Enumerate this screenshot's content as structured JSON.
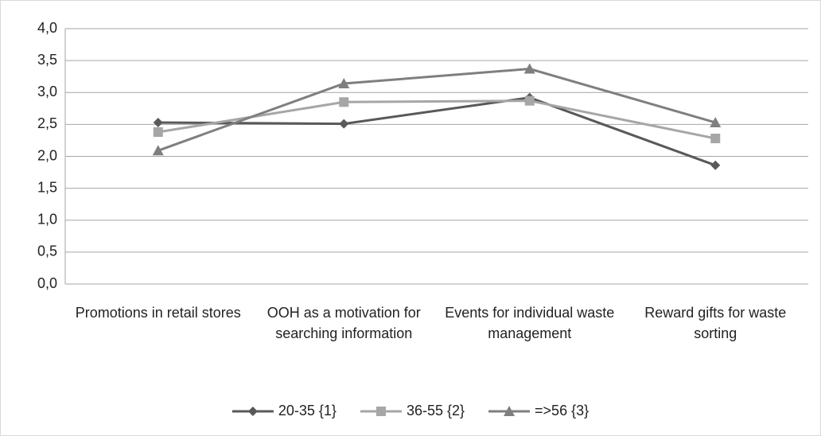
{
  "chart_data": {
    "type": "line",
    "categories": [
      "Promotions in retail stores",
      "OOH as a motivation for searching information",
      "Events for individual waste management",
      "Reward gifts for waste sorting"
    ],
    "series": [
      {
        "name": "20-35 {1}",
        "color": "#595959",
        "marker": "diamond",
        "values": [
          2.53,
          2.51,
          2.92,
          1.86
        ]
      },
      {
        "name": "36-55 {2}",
        "color": "#a6a6a6",
        "marker": "square",
        "values": [
          2.38,
          2.85,
          2.87,
          2.28
        ]
      },
      {
        "name": "=>56 {3}",
        "color": "#7f7f7f",
        "marker": "triangle",
        "values": [
          2.09,
          3.14,
          3.37,
          2.53
        ]
      }
    ],
    "ylim": [
      0,
      4
    ],
    "yticks": [
      {
        "value": 0,
        "label": "0,0"
      },
      {
        "value": 0.5,
        "label": "0,5"
      },
      {
        "value": 1,
        "label": "1,0"
      },
      {
        "value": 1.5,
        "label": "1,5"
      },
      {
        "value": 2,
        "label": "2,0"
      },
      {
        "value": 2.5,
        "label": "2,5"
      },
      {
        "value": 3,
        "label": "3,0"
      },
      {
        "value": 3.5,
        "label": "3,5"
      },
      {
        "value": 4,
        "label": "4,0"
      }
    ],
    "grid": true,
    "legend": "bottom"
  }
}
